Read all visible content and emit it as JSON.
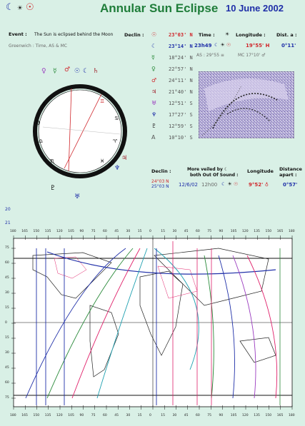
{
  "header": {
    "title": "Annular Sun Eclipse",
    "date": "10 June 2002",
    "symbols": [
      "☾",
      "☀",
      "☉"
    ]
  },
  "event": {
    "label": "Event :",
    "text": "The Sun is eclipsed behind the Moon",
    "greenwich": "Greenwich : Time, AS & MC"
  },
  "declin_header": "Declin :",
  "declinations": [
    {
      "glyph": "☉",
      "value": "23°03' N",
      "color": "#d0262b"
    },
    {
      "glyph": "☾",
      "value": "23°14' N",
      "color": "#1f2fa8"
    },
    {
      "glyph": "☿",
      "value": "18°24' N",
      "color": "#2a8a3a"
    },
    {
      "glyph": "♀",
      "value": "22°57' N",
      "color": "#2a8a3a"
    },
    {
      "glyph": "♂",
      "value": "24°11' N",
      "color": "#d0262b"
    },
    {
      "glyph": "♃",
      "value": "21°40' N",
      "color": "#a0202a"
    },
    {
      "glyph": "♅",
      "value": "12°51' S",
      "color": "#9a3bbf"
    },
    {
      "glyph": "♆",
      "value": "17°27' S",
      "color": "#1f2fa8"
    },
    {
      "glyph": "♇",
      "value": "12°59' S",
      "color": "#333333"
    },
    {
      "glyph": "A",
      "value": "10°10' S",
      "color": "#555555"
    }
  ],
  "time_block": {
    "time_label": "Time :",
    "time_value": "23h49",
    "longitude_label": "Longitude :",
    "longitude_value": "19°55' H",
    "distance_label": "Dist. a :",
    "distance_value": "0°11'",
    "as_text": "AS : 29°55 ≡",
    "mc_text": "MC 17°10' ♂"
  },
  "lower_block": {
    "declin_label": "Declin :",
    "moon_note": "More veiled by ☾",
    "moon_note2": "both Out Of Sound :",
    "decl_sun": "24°03 N",
    "decl_moon": "25°03 N",
    "date_small": "12/6/02",
    "time_small": "12h00",
    "longitude_label": "Longitude",
    "longitude_value": "9°52' ♁",
    "distance_label": "Distance",
    "distance_label2": "apart :",
    "distance_value": "0°57'"
  },
  "page_numbers": {
    "left_a": "20",
    "left_b": "21"
  },
  "map": {
    "top_ticks": [
      "180",
      "165",
      "150",
      "135",
      "120",
      "105",
      "90",
      "75",
      "60",
      "45",
      "30",
      "15",
      "0",
      "15",
      "30",
      "45",
      "60",
      "75",
      "90",
      "105",
      "120",
      "135",
      "150",
      "165",
      "180"
    ],
    "bottom_ticks": [
      "180",
      "165",
      "150",
      "135",
      "120",
      "105",
      "90",
      "75",
      "60",
      "45",
      "30",
      "15",
      "0",
      "15",
      "30",
      "45",
      "60",
      "75",
      "90",
      "105",
      "120",
      "135",
      "150",
      "165",
      "180"
    ],
    "lat_ticks": [
      "75",
      "60",
      "45",
      "30",
      "15",
      "0",
      "15",
      "30",
      "45",
      "60",
      "75"
    ]
  }
}
